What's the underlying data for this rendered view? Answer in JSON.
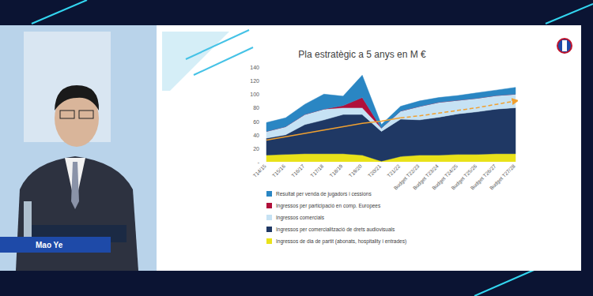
{
  "speaker": "Mao Ye",
  "chart_data": {
    "type": "area",
    "title": "Pla estratègic a 5 anys en M €",
    "categories": [
      "T14/15",
      "T15/16",
      "T16/17",
      "T17/18",
      "T18/19",
      "T19/20",
      "T20/21",
      "T21/22",
      "Budget T22/23",
      "Budget T23/24",
      "Budget T24/25",
      "Budget T25/26",
      "Budget T26/27",
      "Budget T27/28"
    ],
    "stacked": true,
    "grid": false,
    "legend": "bottom",
    "ylim": [
      0,
      140
    ],
    "yticks": [
      {
        "value": 0,
        "label": "-"
      },
      20,
      40,
      60,
      80,
      100,
      120,
      140
    ],
    "series": [
      {
        "name": "Ingressos de dia de partit (abonats, hospitality i entrades)",
        "color": "#e9e21a",
        "values": [
          10,
          11,
          12,
          12,
          12,
          10,
          1,
          8,
          10,
          10,
          11,
          11,
          12,
          12
        ]
      },
      {
        "name": "Ingressos per comercialització de drets audiovisuals",
        "color": "#1f3864",
        "values": [
          25,
          29,
          43,
          50,
          58,
          60,
          44,
          55,
          52,
          56,
          60,
          63,
          66,
          68
        ]
      },
      {
        "name": "Ingressos comercials",
        "color": "#c6e2f4",
        "values": [
          10,
          12,
          15,
          16,
          10,
          10,
          5,
          12,
          20,
          22,
          20,
          20,
          20,
          20
        ]
      },
      {
        "name": "Ingressos per participació en comp. Europees",
        "color": "#b0103a",
        "values": [
          0,
          0,
          0,
          0,
          3,
          15,
          0,
          0,
          0,
          0,
          0,
          0,
          0,
          0
        ]
      },
      {
        "name": "Resultat per venda de jugadors i cessions",
        "color": "#2a86c3",
        "values": [
          13,
          13,
          15,
          22,
          14,
          33,
          5,
          7,
          8,
          7,
          7,
          8,
          8,
          10
        ]
      },
      {
        "type": "line",
        "color": "#f0a030",
        "line_style": "solid",
        "values": [
          32,
          37,
          42,
          47,
          52,
          57,
          60,
          65,
          null,
          null,
          null,
          null,
          null,
          null
        ]
      },
      {
        "type": "line",
        "color": "#f0a030",
        "line_style": "dashed",
        "values": [
          null,
          null,
          null,
          null,
          null,
          null,
          null,
          65,
          68,
          72,
          76,
          80,
          85,
          90
        ]
      }
    ]
  }
}
